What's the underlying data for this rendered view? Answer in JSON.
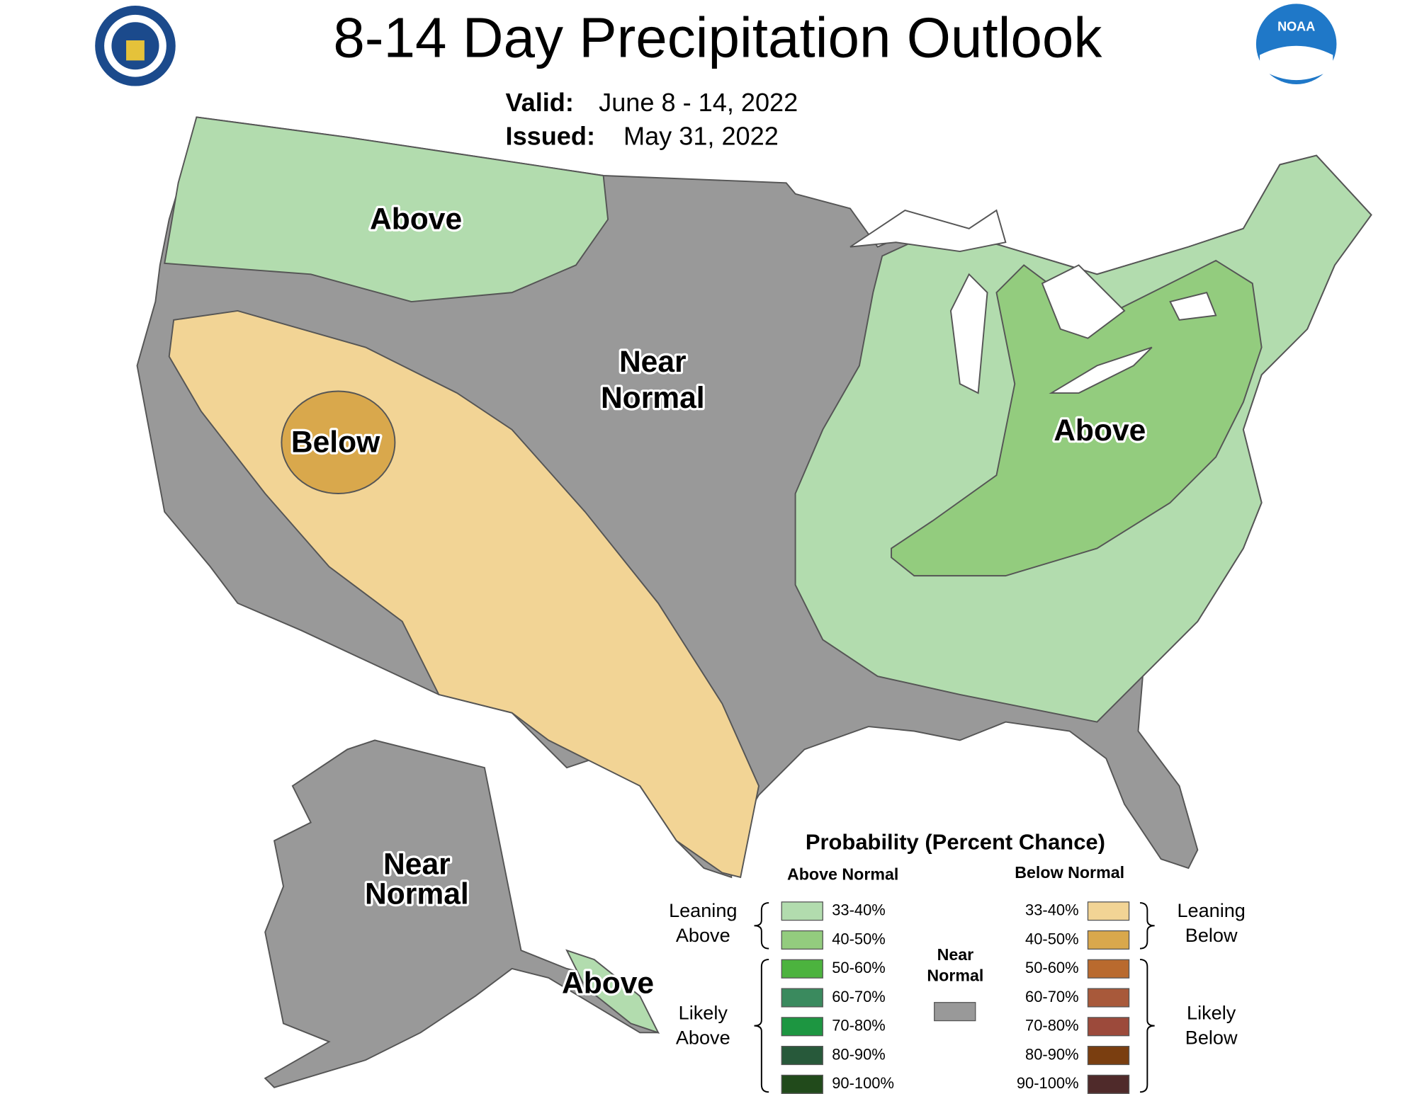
{
  "header": {
    "title": "8-14 Day Precipitation Outlook",
    "valid_label": "Valid:",
    "valid": "June 8 - 14, 2022",
    "issued_label": "Issued:",
    "issued": "May 31, 2022",
    "noaa_logo": "NOAA"
  },
  "map": {
    "labels": [
      {
        "lines": [
          "Above"
        ]
      },
      {
        "lines": [
          "Near",
          "Normal"
        ]
      },
      {
        "lines": [
          "Below"
        ]
      },
      {
        "lines": [
          "Above"
        ]
      },
      {
        "lines": [
          "Near",
          "Normal"
        ]
      },
      {
        "lines": [
          "Above"
        ]
      }
    ]
  },
  "legend": {
    "title": "Probability (Percent Chance)",
    "above_header": "Above Normal",
    "below_header": "Below Normal",
    "above_rows": [
      {
        "label": "33-40%",
        "color": "#b2dcae"
      },
      {
        "label": "40-50%",
        "color": "#93cc7e"
      },
      {
        "label": "50-60%",
        "color": "#4cb33e"
      },
      {
        "label": "60-70%",
        "color": "#3a8a5e"
      },
      {
        "label": "70-80%",
        "color": "#1d9641"
      },
      {
        "label": "80-90%",
        "color": "#27593a"
      },
      {
        "label": "90-100%",
        "color": "#214a1b"
      }
    ],
    "below_rows": [
      {
        "label": "33-40%",
        "color": "#f2d495"
      },
      {
        "label": "40-50%",
        "color": "#d9a84c"
      },
      {
        "label": "50-60%",
        "color": "#b96a2e"
      },
      {
        "label": "60-70%",
        "color": "#a8593a"
      },
      {
        "label": "70-80%",
        "color": "#9c4a3b"
      },
      {
        "label": "80-90%",
        "color": "#7a3e10"
      },
      {
        "label": "90-100%",
        "color": "#4f2a2a"
      }
    ],
    "near_normal": {
      "lines": [
        "Near",
        "Normal"
      ],
      "color": "#999999"
    },
    "leaning_above": [
      "Leaning",
      "Above"
    ],
    "likely_above": [
      "Likely",
      "Above"
    ],
    "leaning_below": [
      "Leaning",
      "Below"
    ],
    "likely_below": [
      "Likely",
      "Below"
    ]
  }
}
